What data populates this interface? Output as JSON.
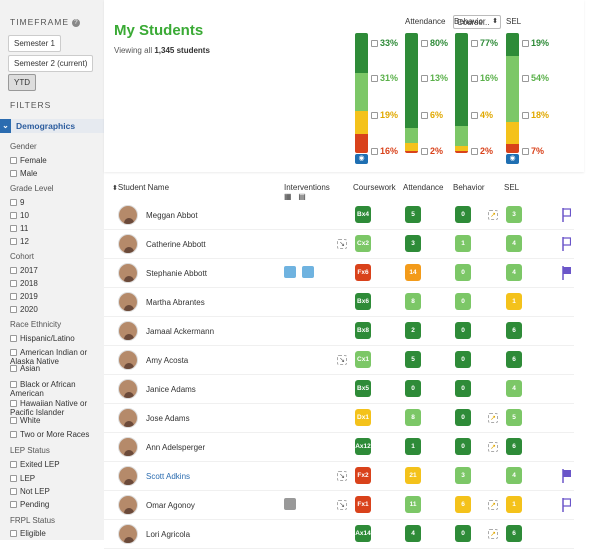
{
  "sidebar": {
    "timeframe_label": "TIMEFRAME",
    "timeframes": [
      "Semester 1",
      "Semester 2 (current)",
      "YTD"
    ],
    "active_timeframe": "YTD",
    "filters_label": "FILTERS",
    "section_label": "Demographics",
    "groups": [
      {
        "label": "Gender",
        "options": [
          "Female",
          "Male"
        ]
      },
      {
        "label": "Grade Level",
        "options": [
          "9",
          "10",
          "11",
          "12"
        ]
      },
      {
        "label": "Cohort",
        "options": [
          "2017",
          "2018",
          "2019",
          "2020"
        ]
      },
      {
        "label": "Race Ethnicity",
        "options": [
          "Hispanic/Latino",
          "American Indian or Alaska Native",
          "Asian",
          "Black or African American",
          "Hawaiian Native or Pacific Islander",
          "White",
          "Two or More Races"
        ]
      },
      {
        "label": "LEP Status",
        "options": [
          "Exited LEP",
          "LEP",
          "Not LEP",
          "Pending"
        ]
      },
      {
        "label": "FRPL Status",
        "options": [
          "Eligible"
        ]
      }
    ]
  },
  "main": {
    "title": "My Students",
    "subtitle_prefix": "Viewing all",
    "subtitle_count": "1,345 students",
    "coursework_select": "Course...",
    "summary": [
      {
        "label": "Coursework",
        "pcts": [
          "33%",
          "31%",
          "19%",
          "16%"
        ],
        "fractions": [
          0.33,
          0.31,
          0.19,
          0.16
        ]
      },
      {
        "label": "Attendance",
        "pcts": [
          "80%",
          "13%",
          "6%",
          "2%"
        ],
        "fractions": [
          0.8,
          0.13,
          0.06,
          0.02
        ]
      },
      {
        "label": "Behavior",
        "pcts": [
          "77%",
          "16%",
          "4%",
          "2%"
        ],
        "fractions": [
          0.77,
          0.16,
          0.04,
          0.02
        ]
      },
      {
        "label": "SEL",
        "pcts": [
          "19%",
          "54%",
          "18%",
          "7%"
        ],
        "fractions": [
          0.19,
          0.54,
          0.18,
          0.07
        ]
      }
    ],
    "columns": {
      "student": "Student Name",
      "interventions": "Interventions",
      "coursework": "Coursework",
      "attendance": "Attendance",
      "behavior": "Behavior",
      "sel": "SEL"
    },
    "students": [
      {
        "name": "Meggan Abbot",
        "cw": "Bx4",
        "cw_c": "g1",
        "att": "5",
        "att_c": "g1",
        "beh": "0",
        "beh_c": "g1",
        "sel": "3",
        "sel_c": "g2",
        "sel_arrow": "↗",
        "flag": "outline"
      },
      {
        "name": "Catherine Abbott",
        "cw": "Cx2",
        "cw_c": "g2",
        "cw_arrow": "↘",
        "att": "3",
        "att_c": "g1",
        "beh": "1",
        "beh_c": "g2",
        "sel": "4",
        "sel_c": "g2",
        "flag": "outline"
      },
      {
        "name": "Stephanie Abbott",
        "cw": "Fx6",
        "cw_c": "r",
        "att": "14",
        "att_c": "o",
        "beh": "0",
        "beh_c": "g2",
        "sel": "4",
        "sel_c": "g2",
        "interventions": 2,
        "flag": "filled"
      },
      {
        "name": "Martha Abrantes",
        "cw": "Bx6",
        "cw_c": "g1",
        "att": "8",
        "att_c": "g2",
        "beh": "0",
        "beh_c": "g2",
        "sel": "1",
        "sel_c": "y"
      },
      {
        "name": "Jamaal Ackermann",
        "cw": "Bx8",
        "cw_c": "g1",
        "att": "2",
        "att_c": "g1",
        "beh": "0",
        "beh_c": "g1",
        "sel": "6",
        "sel_c": "g1"
      },
      {
        "name": "Amy Acosta",
        "cw": "Cx1",
        "cw_c": "g2",
        "cw_arrow": "↘",
        "att": "5",
        "att_c": "g1",
        "beh": "0",
        "beh_c": "g1",
        "sel": "6",
        "sel_c": "g1"
      },
      {
        "name": "Janice Adams",
        "cw": "Bx5",
        "cw_c": "g1",
        "att": "0",
        "att_c": "g1",
        "beh": "0",
        "beh_c": "g1",
        "sel": "4",
        "sel_c": "g2"
      },
      {
        "name": "Jose Adams",
        "cw": "Dx1",
        "cw_c": "y",
        "att": "8",
        "att_c": "g2",
        "beh": "0",
        "beh_c": "g1",
        "sel": "5",
        "sel_c": "g2",
        "sel_arrow": "↗"
      },
      {
        "name": "Ann Adelsperger",
        "cw": "Ax12",
        "cw_c": "g1",
        "att": "1",
        "att_c": "g1",
        "beh": "0",
        "beh_c": "g1",
        "sel": "6",
        "sel_c": "g1",
        "sel_arrow": "↗"
      },
      {
        "name": "Scott Adkins",
        "cw": "Fx2",
        "cw_c": "r",
        "cw_arrow": "↘",
        "att": "21",
        "att_c": "y",
        "beh": "3",
        "beh_c": "g2",
        "sel": "4",
        "sel_c": "g2",
        "flag": "filled",
        "link": true
      },
      {
        "name": "Omar Agonoy",
        "cw": "Fx1",
        "cw_c": "r",
        "cw_arrow": "↘",
        "att": "11",
        "att_c": "g2",
        "beh": "6",
        "beh_c": "y",
        "sel": "1",
        "sel_c": "y",
        "sel_arrow": "↗",
        "interventions": 1,
        "flag": "outline"
      },
      {
        "name": "Lori Agricola",
        "cw": "Ax14",
        "cw_c": "g1",
        "att": "4",
        "att_c": "g1",
        "beh": "0",
        "beh_c": "g1",
        "sel": "6",
        "sel_c": "g1",
        "sel_arrow": "↗"
      }
    ]
  },
  "colors": {
    "green_dark": "#2e8b38",
    "green_light": "#7cc767",
    "yellow": "#f4c21b",
    "orange": "#f39b1a",
    "red": "#d9421b",
    "accent": "#2b6cb0",
    "flag": "#6a55c9"
  }
}
